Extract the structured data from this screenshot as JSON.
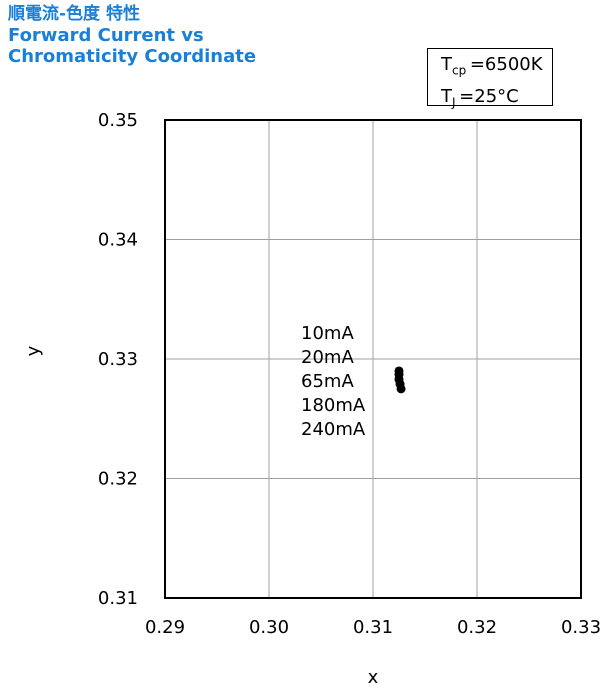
{
  "title": {
    "line1": "順電流-色度 特性",
    "line2": "Forward Current vs",
    "line3": "Chromaticity Coordinate"
  },
  "conditions": {
    "tcp_symbol": "T",
    "tcp_sub": "cp",
    "tcp_value": "=6500K",
    "tj_symbol": "T",
    "tj_sub": "J",
    "tj_value": "=25°C"
  },
  "colors": {
    "title": "#1a7fd6",
    "grid": "#a0a0a0",
    "axis": "#000000",
    "marker": "#000000"
  },
  "chart_data": {
    "type": "scatter",
    "xlabel": "x",
    "ylabel": "y",
    "xlim": [
      0.29,
      0.33
    ],
    "ylim": [
      0.31,
      0.35
    ],
    "x_ticks": [
      0.29,
      0.3,
      0.31,
      0.32,
      0.33
    ],
    "y_ticks": [
      0.31,
      0.32,
      0.33,
      0.34,
      0.35
    ],
    "x_tick_labels": [
      "0.29",
      "0.30",
      "0.31",
      "0.32",
      "0.33"
    ],
    "y_tick_labels": [
      "0.31",
      "0.32",
      "0.33",
      "0.34",
      "0.35"
    ],
    "grid": true,
    "annotations": [
      "10mA",
      "20mA",
      "65mA",
      "180mA",
      "240mA"
    ],
    "points": [
      {
        "label": "10mA",
        "x": 0.3125,
        "y": 0.329
      },
      {
        "label": "20mA",
        "x": 0.3125,
        "y": 0.3287
      },
      {
        "label": "65mA",
        "x": 0.3125,
        "y": 0.3283
      },
      {
        "label": "180mA",
        "x": 0.3126,
        "y": 0.3279
      },
      {
        "label": "240mA",
        "x": 0.3127,
        "y": 0.3275
      }
    ]
  }
}
